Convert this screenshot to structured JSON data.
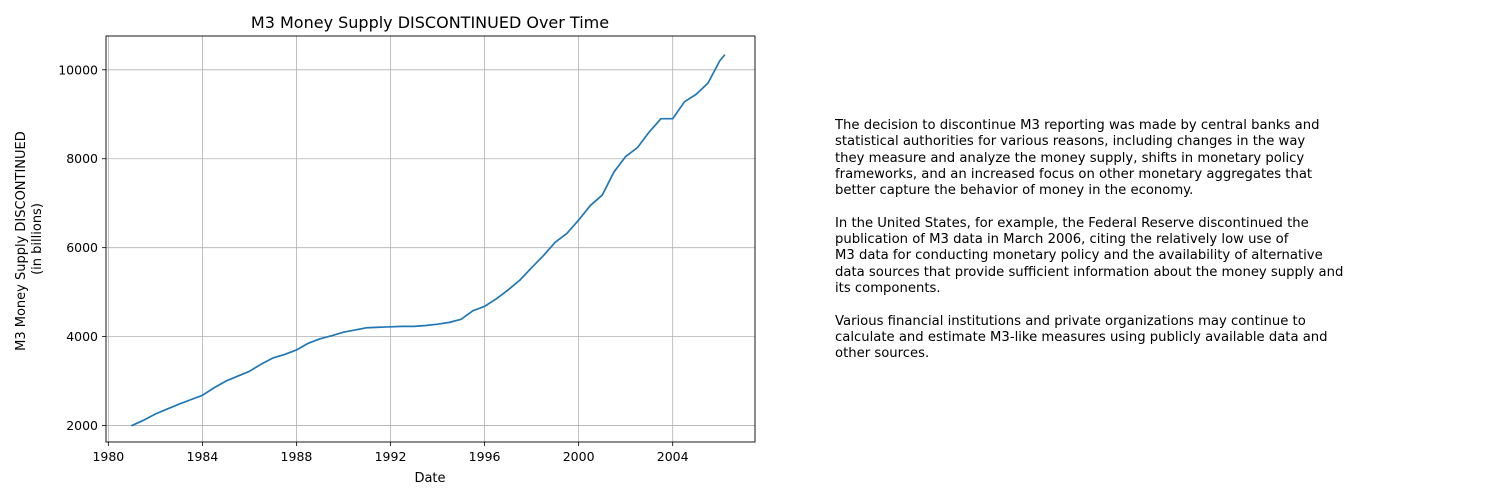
{
  "chart_data": {
    "type": "line",
    "title": "M3 Money Supply DISCONTINUED Over Time",
    "xlabel": "Date",
    "ylabel_lines": [
      "M3 Money Supply DISCONTINUED",
      "(in billions)"
    ],
    "x_ticks": [
      "1980",
      "1984",
      "1988",
      "1992",
      "1996",
      "2000",
      "2004"
    ],
    "y_ticks": [
      "2000",
      "4000",
      "6000",
      "8000",
      "10000"
    ],
    "xlim": [
      1979.9,
      2007.5
    ],
    "ylim": [
      1630,
      10760
    ],
    "grid": true,
    "line_color": "#1f77b4",
    "series": [
      {
        "x": [
          1981.0,
          1981.5,
          1982.0,
          1982.5,
          1983.0,
          1983.5,
          1984.0,
          1984.5,
          1985.0,
          1985.5,
          1986.0,
          1986.5,
          1987.0,
          1987.5,
          1988.0,
          1988.5,
          1989.0,
          1989.5,
          1990.0,
          1990.5,
          1991.0,
          1991.5,
          1992.0,
          1992.5,
          1993.0,
          1993.5,
          1994.0,
          1994.5,
          1995.0,
          1995.5,
          1996.0,
          1996.5,
          1997.0,
          1997.5,
          1998.0,
          1998.5,
          1999.0,
          1999.5,
          2000.0,
          2000.5,
          2001.0,
          2001.5,
          2002.0,
          2002.5,
          2003.0,
          2003.5,
          2004.0,
          2004.5,
          2005.0,
          2005.5,
          2006.0,
          2006.2
        ],
        "y": [
          2000,
          2120,
          2260,
          2370,
          2480,
          2580,
          2680,
          2850,
          3000,
          3110,
          3220,
          3380,
          3520,
          3600,
          3700,
          3850,
          3950,
          4020,
          4100,
          4150,
          4200,
          4210,
          4220,
          4230,
          4230,
          4250,
          4280,
          4320,
          4390,
          4580,
          4680,
          4850,
          5050,
          5270,
          5550,
          5820,
          6120,
          6320,
          6620,
          6950,
          7180,
          7700,
          8050,
          8250,
          8600,
          8900,
          8900,
          9280,
          9450,
          9700,
          10200,
          10330
        ]
      }
    ]
  },
  "notes": {
    "paragraphs": [
      [
        "The decision to discontinue M3 reporting was made by central banks and",
        "statistical authorities for various reasons, including changes in the way",
        "they measure and analyze the money supply, shifts in monetary policy",
        "frameworks, and an increased focus on other monetary aggregates that",
        "better capture the behavior of money in the economy."
      ],
      [
        "In the United States, for example, the Federal Reserve discontinued the",
        "publication of M3 data in March 2006, citing the relatively low use of",
        "M3 data for conducting monetary policy and the availability of alternative",
        "data sources that provide sufficient information about the money supply and",
        "its components."
      ],
      [
        "Various financial institutions and private organizations may continue to",
        "calculate and estimate M3-like measures using publicly available data and",
        "other sources."
      ]
    ]
  }
}
